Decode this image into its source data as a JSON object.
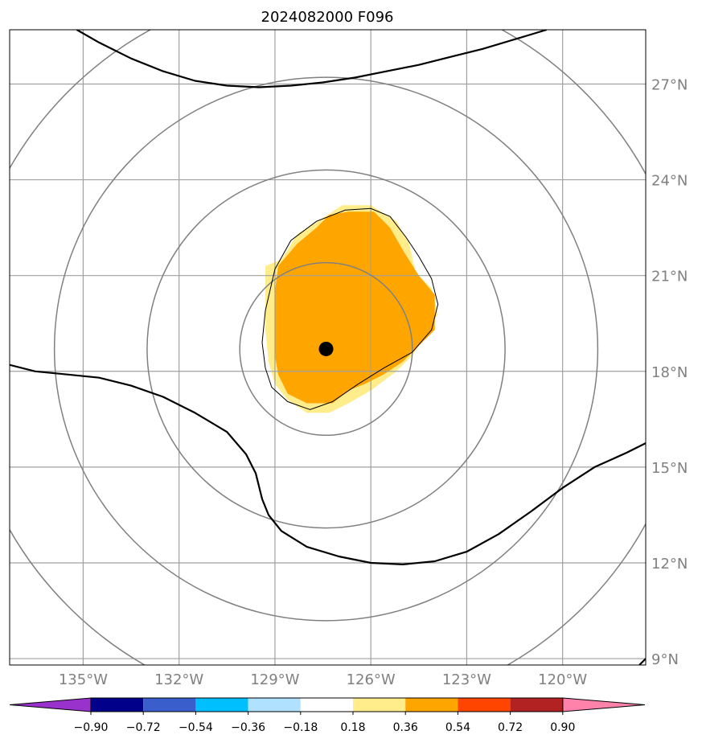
{
  "chart_data": {
    "type": "heatmap",
    "title": "2024082000 F096",
    "projection": "map",
    "lon_ticks": [
      -135,
      -132,
      -129,
      -126,
      -123,
      -120
    ],
    "lon_labels": [
      "135°W",
      "132°W",
      "129°W",
      "126°W",
      "123°W",
      "120°W"
    ],
    "lat_ticks": [
      9,
      12,
      15,
      18,
      21,
      24,
      27
    ],
    "lat_labels": [
      "9°N",
      "12°N",
      "15°N",
      "18°N",
      "21°N",
      "24°N",
      "27°N"
    ],
    "xlim": [
      -137.3,
      -117.4
    ],
    "ylim": [
      8.8,
      28.7
    ],
    "grid": true,
    "center": {
      "lon": -127.4,
      "lat": 18.7
    },
    "range_rings_deg": [
      2.7,
      5.6,
      8.5,
      11.4
    ],
    "colorbar": {
      "ticks": [
        -0.9,
        -0.72,
        -0.54,
        -0.36,
        -0.18,
        0.18,
        0.36,
        0.54,
        0.72,
        0.9
      ],
      "tick_labels": [
        "−0.90",
        "−0.72",
        "−0.54",
        "−0.36",
        "−0.18",
        "0.18",
        "0.36",
        "0.54",
        "0.72",
        "0.90"
      ],
      "colors": [
        "#9932cc",
        "#00008b",
        "#3a5fcd",
        "#00bfff",
        "#b0e2ff",
        "#ffffff",
        "#ffec8b",
        "#ffa500",
        "#ff4500",
        "#b22222",
        "#ff82ab"
      ],
      "extend": "both"
    },
    "fill_regions": [
      {
        "level": "0.18-0.36",
        "color": "#ffec8b",
        "polygon": [
          [
            -128.8,
            21.5
          ],
          [
            -128.3,
            22.3
          ],
          [
            -127.5,
            22.8
          ],
          [
            -126.9,
            23.2
          ],
          [
            -126.0,
            23.2
          ],
          [
            -125.2,
            22.7
          ],
          [
            -124.8,
            22.0
          ],
          [
            -124.6,
            21.1
          ],
          [
            -124.1,
            20.6
          ],
          [
            -123.9,
            19.8
          ],
          [
            -124.3,
            19.1
          ],
          [
            -124.7,
            18.5
          ],
          [
            -125.2,
            18.0
          ],
          [
            -126.0,
            17.4
          ],
          [
            -126.7,
            17.0
          ],
          [
            -127.3,
            16.7
          ],
          [
            -128.0,
            16.7
          ],
          [
            -128.6,
            17.1
          ],
          [
            -129.0,
            17.6
          ],
          [
            -129.2,
            18.3
          ],
          [
            -129.3,
            19.3
          ],
          [
            -129.3,
            20.5
          ],
          [
            -129.3,
            21.3
          ]
        ]
      },
      {
        "level": "0.36-0.54",
        "color": "#ffa500",
        "polygon": [
          [
            -128.9,
            21.3
          ],
          [
            -128.3,
            22.0
          ],
          [
            -127.7,
            22.5
          ],
          [
            -127.3,
            22.9
          ],
          [
            -126.7,
            23.0
          ],
          [
            -125.9,
            23.0
          ],
          [
            -125.4,
            22.5
          ],
          [
            -125.0,
            21.8
          ],
          [
            -124.5,
            21.0
          ],
          [
            -124.0,
            20.4
          ],
          [
            -124.0,
            19.3
          ],
          [
            -124.5,
            18.8
          ],
          [
            -125.0,
            18.3
          ],
          [
            -125.6,
            17.9
          ],
          [
            -126.2,
            17.6
          ],
          [
            -126.7,
            17.4
          ],
          [
            -127.2,
            17.0
          ],
          [
            -128.0,
            17.0
          ],
          [
            -128.6,
            17.3
          ],
          [
            -128.9,
            17.9
          ],
          [
            -129.0,
            18.5
          ],
          [
            -129.0,
            19.5
          ],
          [
            -129.0,
            20.5
          ]
        ]
      }
    ],
    "contour_lines": [
      {
        "name": "",
        "points": [
          [
            -135.2,
            28.7
          ],
          [
            -134.5,
            28.3
          ],
          [
            -133.5,
            27.8
          ],
          [
            -132.5,
            27.4
          ],
          [
            -131.5,
            27.1
          ],
          [
            -130.5,
            26.95
          ],
          [
            -129.5,
            26.9
          ],
          [
            -128.5,
            26.95
          ],
          [
            -127.5,
            27.05
          ],
          [
            -126.5,
            27.2
          ],
          [
            -125.5,
            27.4
          ],
          [
            -124.5,
            27.6
          ],
          [
            -123.5,
            27.85
          ],
          [
            -122.5,
            28.1
          ],
          [
            -121.5,
            28.4
          ],
          [
            -121.0,
            28.55
          ],
          [
            -120.5,
            28.7
          ]
        ]
      },
      {
        "name": "",
        "points": [
          [
            -137.3,
            18.2
          ],
          [
            -136.5,
            18.0
          ],
          [
            -135.5,
            17.9
          ],
          [
            -134.5,
            17.8
          ],
          [
            -133.5,
            17.55
          ],
          [
            -132.5,
            17.2
          ],
          [
            -131.5,
            16.7
          ],
          [
            -130.5,
            16.1
          ],
          [
            -129.9,
            15.4
          ],
          [
            -129.6,
            14.8
          ],
          [
            -129.4,
            14.0
          ],
          [
            -129.2,
            13.5
          ],
          [
            -128.8,
            13.0
          ],
          [
            -128.0,
            12.5
          ],
          [
            -127.0,
            12.2
          ],
          [
            -126.0,
            12.0
          ],
          [
            -125.0,
            11.95
          ],
          [
            -124.0,
            12.05
          ],
          [
            -123.0,
            12.35
          ],
          [
            -122.0,
            12.9
          ],
          [
            -121.0,
            13.6
          ],
          [
            -120.0,
            14.35
          ],
          [
            -119.0,
            15.0
          ],
          [
            -118.0,
            15.45
          ],
          [
            -117.4,
            15.75
          ]
        ]
      },
      {
        "name": "",
        "points": [
          [
            -117.6,
            8.8
          ],
          [
            -117.4,
            9.0
          ]
        ]
      }
    ],
    "thin_contour": [
      [
        -129.0,
        21.2
      ],
      [
        -128.5,
        22.1
      ],
      [
        -127.7,
        22.7
      ],
      [
        -126.8,
        23.05
      ],
      [
        -126.0,
        23.1
      ],
      [
        -125.4,
        22.85
      ],
      [
        -124.9,
        22.2
      ],
      [
        -124.5,
        21.6
      ],
      [
        -124.1,
        20.9
      ],
      [
        -123.9,
        20.1
      ],
      [
        -124.1,
        19.3
      ],
      [
        -124.7,
        18.6
      ],
      [
        -125.6,
        18.1
      ],
      [
        -126.4,
        17.6
      ],
      [
        -127.2,
        17.05
      ],
      [
        -127.9,
        16.8
      ],
      [
        -128.6,
        17.05
      ],
      [
        -129.1,
        17.5
      ],
      [
        -129.3,
        18.1
      ],
      [
        -129.4,
        18.9
      ],
      [
        -129.3,
        19.9
      ]
    ]
  }
}
